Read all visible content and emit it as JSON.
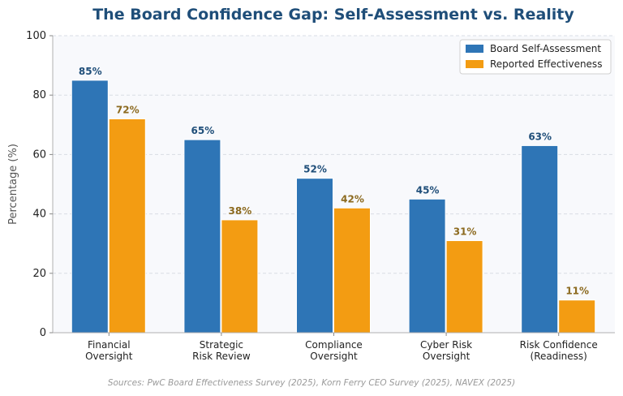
{
  "chart_data": {
    "type": "bar",
    "title": "The Board Confidence Gap: Self-Assessment vs. Reality",
    "xlabel": "",
    "ylabel": "Percentage (%)",
    "ylim": [
      0,
      100
    ],
    "yticks": [
      "0",
      "20",
      "40",
      "60",
      "80",
      "100"
    ],
    "grid": true,
    "legend_position": "top-right",
    "categories": [
      [
        "Financial",
        "Oversight"
      ],
      [
        "Strategic",
        "Risk Review"
      ],
      [
        "Compliance",
        "Oversight"
      ],
      [
        "Cyber Risk",
        "Oversight"
      ],
      [
        "Risk Confidence",
        "(Readiness)"
      ]
    ],
    "series": [
      {
        "name": "Board Self-Assessment",
        "values": [
          85,
          65,
          52,
          45,
          63
        ],
        "color": "#2e75b6",
        "label_color": "#1f4e79"
      },
      {
        "name": "Reported Effectiveness",
        "values": [
          72,
          38,
          42,
          31,
          11
        ],
        "color": "#f39c12",
        "label_color": "#8c6a1f"
      }
    ],
    "value_suffix": "%",
    "source_note": "Sources: PwC Board Effectiveness Survey (2025), Korn Ferry CEO Survey (2025), NAVEX (2025)"
  }
}
